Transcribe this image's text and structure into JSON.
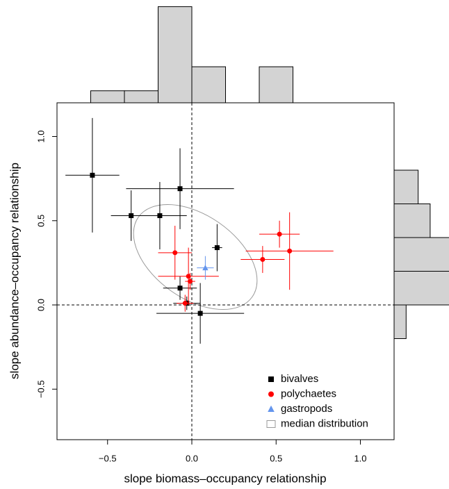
{
  "chart_data": {
    "type": "scatter",
    "xlabel": "slope biomass–occupancy relationship",
    "ylabel": "slope abundance–occupancy relationship",
    "xlim": [
      -0.8,
      1.2
    ],
    "ylim": [
      -0.8,
      1.2
    ],
    "xticks": [
      {
        "value": -0.5,
        "label": "−0.5"
      },
      {
        "value": 0,
        "label": "0.0"
      },
      {
        "value": 0.5,
        "label": "0.5"
      },
      {
        "value": 1,
        "label": "1.0"
      }
    ],
    "yticks": [
      {
        "value": -0.5,
        "label": "−0.5"
      },
      {
        "value": 0,
        "label": "0.0"
      },
      {
        "value": 0.5,
        "label": "0.5"
      },
      {
        "value": 1,
        "label": "1.0"
      }
    ],
    "reference_lines": {
      "x": 0,
      "y": 0
    },
    "legend": "bottomright",
    "ellipse_label": "median distribution",
    "series": [
      {
        "name": "bivalves",
        "color": "#000000",
        "marker": "square",
        "x": [
          -0.59,
          -0.36,
          -0.19,
          -0.07,
          0.15,
          -0.07,
          -0.03,
          0.05
        ],
        "y": [
          0.77,
          0.53,
          0.53,
          0.69,
          0.34,
          0.1,
          0.01,
          -0.05
        ],
        "xerr": [
          0.16,
          0.12,
          0.16,
          0.32,
          0.03,
          0.1,
          0.08,
          0.26
        ],
        "yerr": [
          0.34,
          0.15,
          0.2,
          0.24,
          0.14,
          0.07,
          0.04,
          0.18
        ]
      },
      {
        "name": "polychaetes",
        "color": "#ff0000",
        "marker": "circle",
        "x": [
          -0.1,
          -0.02,
          -0.01,
          -0.04,
          0.52,
          0.42,
          0.58
        ],
        "y": [
          0.31,
          0.17,
          0.14,
          0.01,
          0.42,
          0.27,
          0.32
        ],
        "xerr": [
          0.1,
          0.18,
          0.03,
          0.05,
          0.12,
          0.13,
          0.26
        ],
        "yerr": [
          0.16,
          0.17,
          0.05,
          0.05,
          0.08,
          0.08,
          0.23
        ]
      },
      {
        "name": "gastropods",
        "color": "#6495ed",
        "marker": "triangle",
        "x": [
          0.08
        ],
        "y": [
          0.22
        ],
        "xerr": [
          0.05
        ],
        "yerr": [
          0.07
        ]
      }
    ],
    "top_histogram": {
      "bins": [
        -0.6,
        -0.4,
        -0.2,
        0,
        0.2,
        0.4,
        0.6
      ],
      "counts": [
        1,
        1,
        8,
        3,
        0,
        3
      ]
    },
    "right_histogram": {
      "bins": [
        -0.2,
        0,
        0.2,
        0.4,
        0.6,
        0.8
      ],
      "counts": [
        1,
        5,
        5,
        3,
        2
      ]
    }
  }
}
